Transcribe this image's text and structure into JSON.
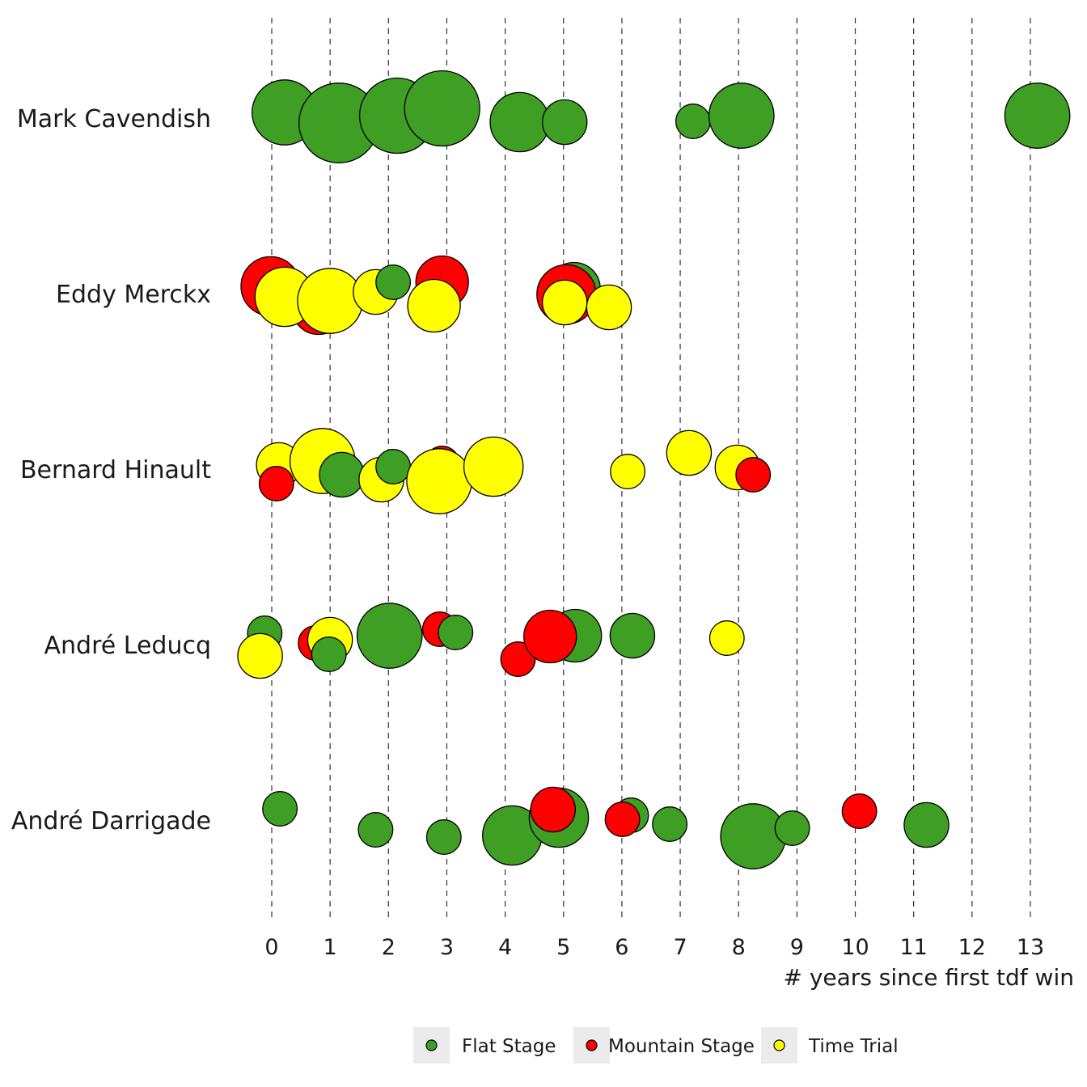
{
  "chart_data": {
    "type": "scatter",
    "title": "",
    "xlabel": "# years since first tdf win",
    "ylabel": "",
    "xlim": [
      -0.3,
      13.3
    ],
    "x_ticks": [
      0,
      1,
      2,
      3,
      4,
      5,
      6,
      7,
      8,
      9,
      10,
      11,
      12,
      13
    ],
    "x_tick_labels": [
      "0",
      "1",
      "2",
      "3",
      "4",
      "5",
      "6",
      "7",
      "8",
      "9",
      "10",
      "11",
      "12",
      "13"
    ],
    "grid": "vertical dashed lines at x ticks",
    "legend_position": "bottom",
    "categories": [
      "Mark Cavendish",
      "Eddy Merckx",
      "Bernard Hinault",
      "André Leducq",
      "André Darrigade"
    ],
    "series": [
      {
        "name": "Flat Stage",
        "color": "#3f9e24"
      },
      {
        "name": "Mountain Stage",
        "color": "#ff0000"
      },
      {
        "name": "Time Trial",
        "color": "#ffff00"
      }
    ],
    "points": [
      {
        "rider": "Mark Cavendish",
        "type": "Flat Stage",
        "x": 0.22,
        "jitter": 0.07,
        "size": 5
      },
      {
        "rider": "Mark Cavendish",
        "type": "Flat Stage",
        "x": 1.15,
        "jitter": -0.06,
        "size": 8
      },
      {
        "rider": "Mark Cavendish",
        "type": "Flat Stage",
        "x": 2.15,
        "jitter": 0.03,
        "size": 7
      },
      {
        "rider": "Mark Cavendish",
        "type": "Flat Stage",
        "x": 2.92,
        "jitter": 0.12,
        "size": 7
      },
      {
        "rider": "Mark Cavendish",
        "type": "Flat Stage",
        "x": 4.25,
        "jitter": -0.05,
        "size": 4
      },
      {
        "rider": "Mark Cavendish",
        "type": "Flat Stage",
        "x": 5.02,
        "jitter": -0.05,
        "size": 2
      },
      {
        "rider": "Mark Cavendish",
        "type": "Flat Stage",
        "x": 7.22,
        "jitter": -0.04,
        "size": 1
      },
      {
        "rider": "Mark Cavendish",
        "type": "Flat Stage",
        "x": 8.05,
        "jitter": 0.03,
        "size": 5
      },
      {
        "rider": "Mark Cavendish",
        "type": "Flat Stage",
        "x": 13.12,
        "jitter": 0.03,
        "size": 5
      },
      {
        "rider": "Eddy Merckx",
        "type": "Mountain Stage",
        "x": -0.02,
        "jitter": 0.09,
        "size": 4
      },
      {
        "rider": "Eddy Merckx",
        "type": "Flat Stage",
        "x": 1.0,
        "jitter": 0.05,
        "size": 1
      },
      {
        "rider": "Eddy Merckx",
        "type": "Mountain Stage",
        "x": 0.8,
        "jitter": -0.18,
        "size": 3
      },
      {
        "rider": "Eddy Merckx",
        "type": "Time Trial",
        "x": 0.22,
        "jitter": -0.04,
        "size": 4
      },
      {
        "rider": "Eddy Merckx",
        "type": "Time Trial",
        "x": 1.0,
        "jitter": -0.09,
        "size": 5
      },
      {
        "rider": "Eddy Merckx",
        "type": "Time Trial",
        "x": 1.78,
        "jitter": 0.02,
        "size": 2
      },
      {
        "rider": "Eddy Merckx",
        "type": "Flat Stage",
        "x": 2.08,
        "jitter": 0.14,
        "size": 1
      },
      {
        "rider": "Eddy Merckx",
        "type": "Mountain Stage",
        "x": 2.92,
        "jitter": 0.14,
        "size": 3
      },
      {
        "rider": "Eddy Merckx",
        "type": "Time Trial",
        "x": 2.78,
        "jitter": -0.15,
        "size": 3
      },
      {
        "rider": "Eddy Merckx",
        "type": "Flat Stage",
        "x": 5.18,
        "jitter": 0.06,
        "size": 3
      },
      {
        "rider": "Eddy Merckx",
        "type": "Mountain Stage",
        "x": 5.05,
        "jitter": -0.01,
        "size": 4
      },
      {
        "rider": "Eddy Merckx",
        "type": "Time Trial",
        "x": 5.02,
        "jitter": -0.11,
        "size": 2
      },
      {
        "rider": "Eddy Merckx",
        "type": "Time Trial",
        "x": 5.78,
        "jitter": -0.17,
        "size": 2
      },
      {
        "rider": "Bernard Hinault",
        "type": "Time Trial",
        "x": 0.12,
        "jitter": 0.05,
        "size": 2
      },
      {
        "rider": "Bernard Hinault",
        "type": "Mountain Stage",
        "x": 0.08,
        "jitter": -0.18,
        "size": 1
      },
      {
        "rider": "Bernard Hinault",
        "type": "Time Trial",
        "x": 0.87,
        "jitter": 0.1,
        "size": 5
      },
      {
        "rider": "Bernard Hinault",
        "type": "Flat Stage",
        "x": 1.2,
        "jitter": -0.07,
        "size": 2
      },
      {
        "rider": "Bernard Hinault",
        "type": "Time Trial",
        "x": 1.88,
        "jitter": -0.13,
        "size": 2
      },
      {
        "rider": "Bernard Hinault",
        "type": "Flat Stage",
        "x": 2.08,
        "jitter": 0.03,
        "size": 1
      },
      {
        "rider": "Bernard Hinault",
        "type": "Mountain Stage",
        "x": 2.92,
        "jitter": 0.07,
        "size": 1
      },
      {
        "rider": "Bernard Hinault",
        "type": "Time Trial",
        "x": 2.87,
        "jitter": -0.15,
        "size": 5
      },
      {
        "rider": "Bernard Hinault",
        "type": "Time Trial",
        "x": 3.8,
        "jitter": 0.03,
        "size": 4
      },
      {
        "rider": "Bernard Hinault",
        "type": "Time Trial",
        "x": 6.1,
        "jitter": -0.03,
        "size": 1
      },
      {
        "rider": "Bernard Hinault",
        "type": "Time Trial",
        "x": 7.15,
        "jitter": 0.2,
        "size": 2
      },
      {
        "rider": "Bernard Hinault",
        "type": "Time Trial",
        "x": 7.98,
        "jitter": 0.02,
        "size": 2
      },
      {
        "rider": "Bernard Hinault",
        "type": "Mountain Stage",
        "x": 8.25,
        "jitter": -0.07,
        "size": 1
      },
      {
        "rider": "André Leducq",
        "type": "Flat Stage",
        "x": -0.12,
        "jitter": 0.14,
        "size": 1
      },
      {
        "rider": "André Leducq",
        "type": "Time Trial",
        "x": -0.2,
        "jitter": -0.14,
        "size": 2
      },
      {
        "rider": "André Leducq",
        "type": "Mountain Stage",
        "x": 0.75,
        "jitter": 0.02,
        "size": 1
      },
      {
        "rider": "André Leducq",
        "type": "Time Trial",
        "x": 1.0,
        "jitter": 0.06,
        "size": 2
      },
      {
        "rider": "André Leducq",
        "type": "Flat Stage",
        "x": 0.98,
        "jitter": -0.12,
        "size": 1
      },
      {
        "rider": "André Leducq",
        "type": "Flat Stage",
        "x": 2.02,
        "jitter": 0.11,
        "size": 5
      },
      {
        "rider": "André Leducq",
        "type": "Mountain Stage",
        "x": 2.88,
        "jitter": 0.19,
        "size": 1
      },
      {
        "rider": "André Leducq",
        "type": "Flat Stage",
        "x": 3.15,
        "jitter": 0.15,
        "size": 1
      },
      {
        "rider": "André Leducq",
        "type": "Mountain Stage",
        "x": 4.22,
        "jitter": -0.18,
        "size": 1
      },
      {
        "rider": "André Leducq",
        "type": "Flat Stage",
        "x": 5.2,
        "jitter": 0.11,
        "size": 3
      },
      {
        "rider": "André Leducq",
        "type": "Mountain Stage",
        "x": 4.77,
        "jitter": 0.1,
        "size": 3
      },
      {
        "rider": "André Leducq",
        "type": "Flat Stage",
        "x": 6.18,
        "jitter": 0.11,
        "size": 2
      },
      {
        "rider": "André Leducq",
        "type": "Time Trial",
        "x": 7.8,
        "jitter": 0.08,
        "size": 1
      },
      {
        "rider": "André Darrigade",
        "type": "Flat Stage",
        "x": 0.14,
        "jitter": 0.14,
        "size": 1
      },
      {
        "rider": "André Darrigade",
        "type": "Flat Stage",
        "x": 1.78,
        "jitter": -0.12,
        "size": 1
      },
      {
        "rider": "André Darrigade",
        "type": "Flat Stage",
        "x": 2.95,
        "jitter": -0.21,
        "size": 1
      },
      {
        "rider": "André Darrigade",
        "type": "Flat Stage",
        "x": 4.12,
        "jitter": -0.19,
        "size": 4
      },
      {
        "rider": "André Darrigade",
        "type": "Flat Stage",
        "x": 4.92,
        "jitter": 0.03,
        "size": 4
      },
      {
        "rider": "André Darrigade",
        "type": "Mountain Stage",
        "x": 4.82,
        "jitter": 0.13,
        "size": 2
      },
      {
        "rider": "André Darrigade",
        "type": "Flat Stage",
        "x": 6.16,
        "jitter": 0.06,
        "size": 1
      },
      {
        "rider": "André Darrigade",
        "type": "Mountain Stage",
        "x": 6.01,
        "jitter": 0.01,
        "size": 1
      },
      {
        "rider": "André Darrigade",
        "type": "Flat Stage",
        "x": 6.82,
        "jitter": -0.05,
        "size": 1
      },
      {
        "rider": "André Darrigade",
        "type": "Flat Stage",
        "x": 8.25,
        "jitter": -0.2,
        "size": 5
      },
      {
        "rider": "André Darrigade",
        "type": "Flat Stage",
        "x": 8.92,
        "jitter": -0.1,
        "size": 1
      },
      {
        "rider": "André Darrigade",
        "type": "Mountain Stage",
        "x": 10.07,
        "jitter": 0.11,
        "size": 1
      },
      {
        "rider": "André Darrigade",
        "type": "Flat Stage",
        "x": 11.22,
        "jitter": -0.06,
        "size": 2
      }
    ]
  }
}
